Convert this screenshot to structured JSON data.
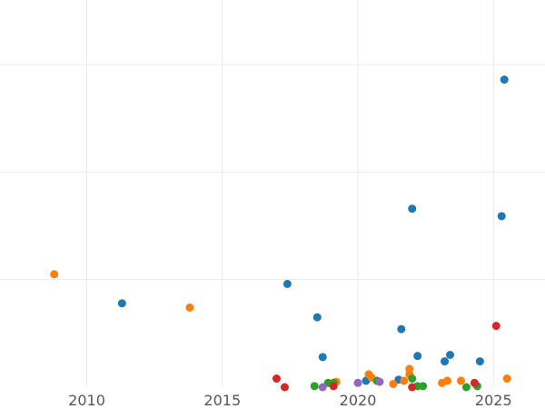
{
  "chart_data": {
    "type": "scatter",
    "title": "",
    "xlabel": "",
    "ylabel": "",
    "x_axis": {
      "type": "time",
      "range": [
        2006.8,
        2026.9
      ],
      "ticks": [
        "2010",
        "2015",
        "2020",
        "2025"
      ],
      "tick_values": [
        2010,
        2015,
        2020,
        2025
      ]
    },
    "y_axis": {
      "range": [
        0,
        3.6
      ],
      "gridlines": [
        1,
        2,
        3
      ],
      "tick_labels_visible": false
    },
    "grid": true,
    "legend": "none",
    "series": [
      {
        "color": "#1f77b4",
        "points": [
          {
            "x": 2011.3,
            "y": 0.78
          },
          {
            "x": 2017.4,
            "y": 0.96
          },
          {
            "x": 2018.5,
            "y": 0.65
          },
          {
            "x": 2018.7,
            "y": 0.28
          },
          {
            "x": 2020.3,
            "y": 0.06
          },
          {
            "x": 2021.5,
            "y": 0.07
          },
          {
            "x": 2021.6,
            "y": 0.54
          },
          {
            "x": 2022.0,
            "y": 1.66
          },
          {
            "x": 2022.2,
            "y": 0.29
          },
          {
            "x": 2023.2,
            "y": 0.24
          },
          {
            "x": 2023.4,
            "y": 0.3
          },
          {
            "x": 2024.5,
            "y": 0.24
          },
          {
            "x": 2025.3,
            "y": 1.59
          },
          {
            "x": 2025.4,
            "y": 2.86
          }
        ]
      },
      {
        "color": "#ff7f0e",
        "points": [
          {
            "x": 2008.8,
            "y": 1.05
          },
          {
            "x": 2013.8,
            "y": 0.74
          },
          {
            "x": 2019.2,
            "y": 0.05
          },
          {
            "x": 2020.4,
            "y": 0.12
          },
          {
            "x": 2020.5,
            "y": 0.09
          },
          {
            "x": 2021.3,
            "y": 0.03
          },
          {
            "x": 2021.7,
            "y": 0.06
          },
          {
            "x": 2021.9,
            "y": 0.17
          },
          {
            "x": 2021.9,
            "y": 0.12
          },
          {
            "x": 2023.1,
            "y": 0.04
          },
          {
            "x": 2023.3,
            "y": 0.06
          },
          {
            "x": 2023.8,
            "y": 0.06
          },
          {
            "x": 2025.5,
            "y": 0.08
          }
        ]
      },
      {
        "color": "#2ca02c",
        "points": [
          {
            "x": 2018.4,
            "y": 0.01
          },
          {
            "x": 2018.9,
            "y": 0.04
          },
          {
            "x": 2019.1,
            "y": 0.04
          },
          {
            "x": 2020.7,
            "y": 0.06
          },
          {
            "x": 2022.0,
            "y": 0.08
          },
          {
            "x": 2022.2,
            "y": 0.01
          },
          {
            "x": 2022.4,
            "y": 0.01
          },
          {
            "x": 2024.0,
            "y": 0.0
          },
          {
            "x": 2024.4,
            "y": 0.01
          }
        ]
      },
      {
        "color": "#d62728",
        "points": [
          {
            "x": 2017.0,
            "y": 0.08
          },
          {
            "x": 2017.3,
            "y": 0.0
          },
          {
            "x": 2019.1,
            "y": 0.01
          },
          {
            "x": 2022.0,
            "y": 0.0
          },
          {
            "x": 2024.3,
            "y": 0.04
          },
          {
            "x": 2025.1,
            "y": 0.57
          }
        ]
      },
      {
        "color": "#9467bd",
        "points": [
          {
            "x": 2018.7,
            "y": 0.0
          },
          {
            "x": 2020.0,
            "y": 0.04
          },
          {
            "x": 2020.8,
            "y": 0.05
          }
        ]
      }
    ]
  }
}
